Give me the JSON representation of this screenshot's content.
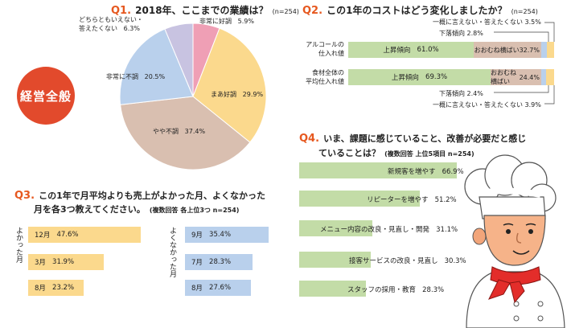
{
  "badge": {
    "label": "経営全般",
    "color": "#e24a2c"
  },
  "q1": {
    "num": "Q1.",
    "text": "2018年、ここまでの業績は？",
    "n": "(n=254)",
    "slices": [
      {
        "label": "非常に好調",
        "value": "5.9%",
        "pct": 5.9,
        "color": "#ef9fb5"
      },
      {
        "label": "まあ好調",
        "value": "29.9%",
        "pct": 29.9,
        "color": "#fbd98d"
      },
      {
        "label": "やや不調",
        "value": "37.4%",
        "pct": 37.4,
        "color": "#d9bfb0"
      },
      {
        "label": "非常に不調",
        "value": "20.5%",
        "pct": 20.5,
        "color": "#b9d0ec"
      },
      {
        "label1": "どちらともいえない・",
        "label2": "答えたくない",
        "value": "6.3%",
        "pct": 6.3,
        "color": "#c8c3e1"
      }
    ]
  },
  "q2": {
    "num": "Q2.",
    "text": "この1年のコストはどう変化しましたか？",
    "n": "(n=254)",
    "rows": [
      {
        "label1": "アルコールの",
        "label2": "仕入れ値",
        "up_label": "上昇傾向",
        "up": "61.0%",
        "up_pct": 61.0,
        "flat_label": "おおむね横ばい",
        "flat": "32.7%",
        "flat_pct": 32.7,
        "down_pct": 2.8,
        "other_pct": 3.5
      },
      {
        "label1": "食材全体の",
        "label2": "平均仕入れ値",
        "up_label": "上昇傾向",
        "up": "69.3%",
        "up_pct": 69.3,
        "flat_label": "おおむね横ばい",
        "flat": "24.4%",
        "flat_pct": 24.4,
        "down_pct": 2.4,
        "other_pct": 3.9
      }
    ],
    "callouts": {
      "top_other": "一概に言えない・答えたくない 3.5%",
      "top_down": "下落傾向 2.8%",
      "bottom_down": "下落傾向 2.4%",
      "bottom_other": "一概に言えない・答えたくない 3.9%"
    },
    "colors": {
      "up": "#c3dca7",
      "flat": "#d9bfb0",
      "down": "#b9d0ec",
      "other": "#fbd98d"
    }
  },
  "q3": {
    "num": "Q3.",
    "text1": "この1年で月平均よりも売上がよかった月、よくなかった",
    "text2": "月を各3つ教えてください。",
    "text2b": "(複数回答 各上位3つ n=254)",
    "good_label": "よかった月",
    "bad_label": "よくなかった月",
    "good": [
      {
        "month": "12月",
        "value": "47.6%",
        "pct": 47.6
      },
      {
        "month": "3月",
        "value": "31.9%",
        "pct": 31.9
      },
      {
        "month": "8月",
        "value": "23.2%",
        "pct": 23.2
      }
    ],
    "bad": [
      {
        "month": "9月",
        "value": "35.4%",
        "pct": 35.4
      },
      {
        "month": "7月",
        "value": "28.3%",
        "pct": 28.3
      },
      {
        "month": "8月",
        "value": "27.6%",
        "pct": 27.6
      }
    ]
  },
  "q4": {
    "num": "Q4.",
    "text1": "いま、課題に感じていること、改善が必要だと感じ",
    "text2": "ていることは？",
    "text2b": "(複数回答 上位5項目 n=254)",
    "items": [
      {
        "label": "新規客を増やす",
        "value": "66.9%",
        "pct": 66.9
      },
      {
        "label": "リピーターを増やす",
        "value": "51.2%",
        "pct": 51.2
      },
      {
        "label": "メニュー内容の改良・見直し・開発",
        "value": "31.1%",
        "pct": 31.1
      },
      {
        "label": "接客サービスの改良・見直し",
        "value": "30.3%",
        "pct": 30.3
      },
      {
        "label": "スタッフの採用・教育",
        "value": "28.3%",
        "pct": 28.3
      }
    ]
  }
}
